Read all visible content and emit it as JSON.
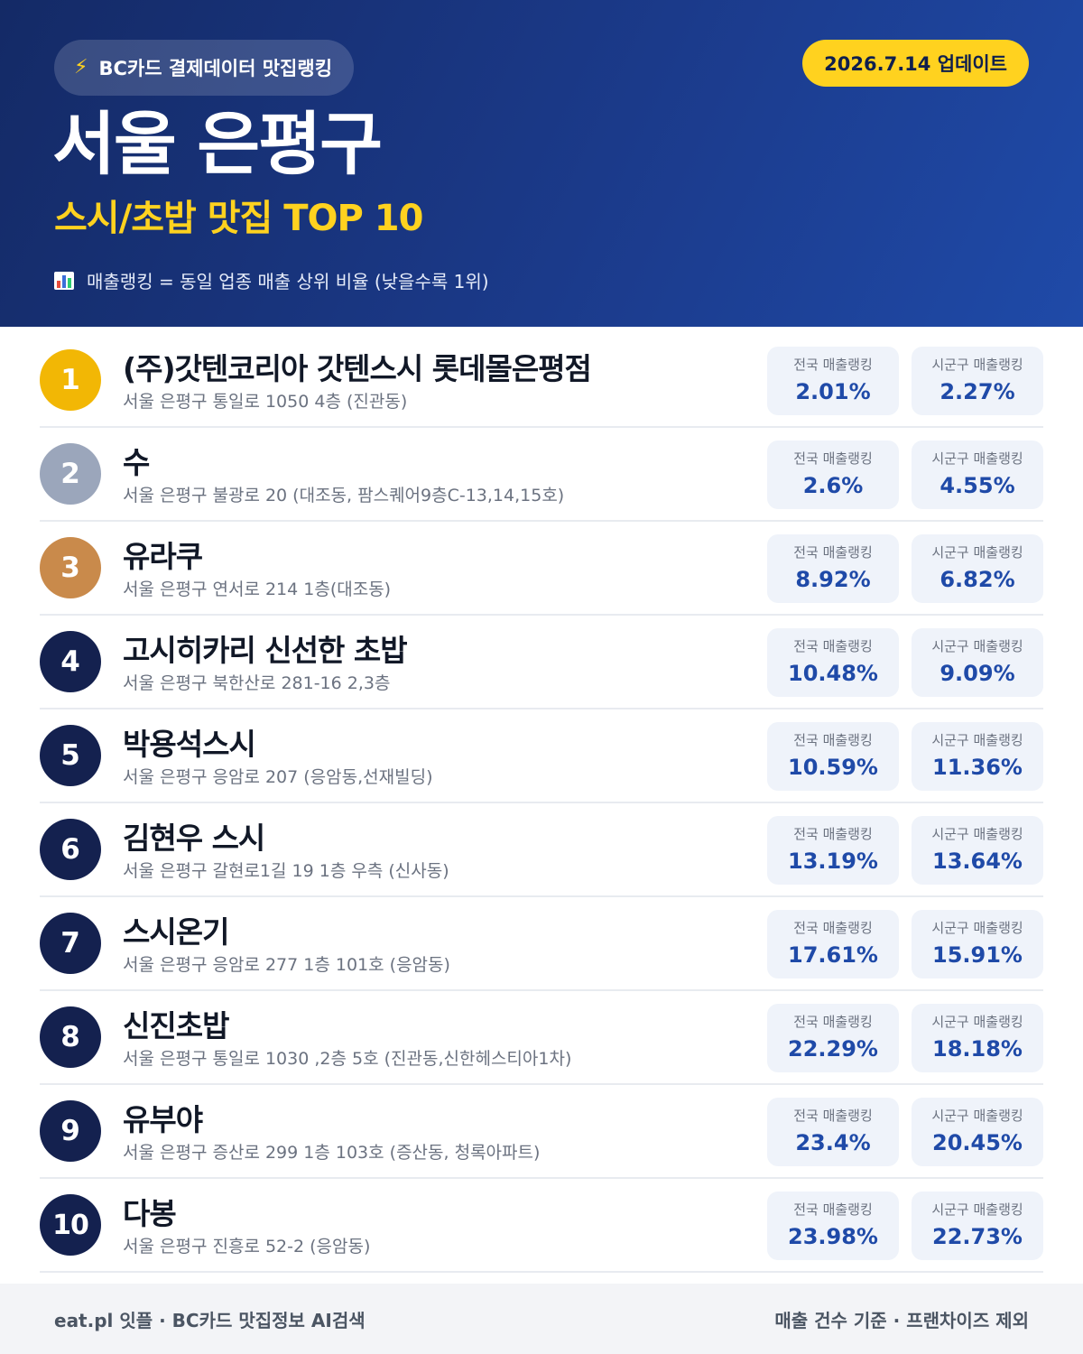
{
  "header": {
    "source_label": "BC카드 결제데이터 맛집랭킹",
    "source_icon": "lightning-bolt-icon",
    "update_label": "2026.7.14 업데이트",
    "title": "서울 은평구",
    "subtitle": "스시/초밥 맛집 TOP 10",
    "legend_icon": "bar-chart-icon",
    "legend_text": "매출랭킹 = 동일 업종 매출 상위 비율 (낮을수록 1위)"
  },
  "colors": {
    "header_start": "#142a66",
    "header_end": "#1f4aa8",
    "accent_yellow": "#ffd21f",
    "gold": "#f2b705",
    "silver": "#9ba6bb",
    "bronze": "#c98a4b",
    "navy": "#14214f",
    "value_blue": "#1f4aa8"
  },
  "stat_labels": {
    "national": "전국 매출랭킹",
    "district": "시군구 매출랭킹"
  },
  "restaurants": [
    {
      "rank": "1",
      "name": "(주)갓텐코리아 갓텐스시 롯데몰은평점",
      "address": "서울 은평구 통일로 1050 4층 (진관동)",
      "national": "2.01%",
      "district": "2.27%"
    },
    {
      "rank": "2",
      "name": "수",
      "address": "서울 은평구 불광로 20 (대조동, 팜스퀘어9층C-13,14,15호)",
      "national": "2.6%",
      "district": "4.55%"
    },
    {
      "rank": "3",
      "name": "유라쿠",
      "address": "서울 은평구 연서로 214 1층(대조동)",
      "national": "8.92%",
      "district": "6.82%"
    },
    {
      "rank": "4",
      "name": "고시히카리 신선한 초밥",
      "address": "서울 은평구 북한산로 281-16 2,3층",
      "national": "10.48%",
      "district": "9.09%"
    },
    {
      "rank": "5",
      "name": "박용석스시",
      "address": "서울 은평구 응암로 207 (응암동,선재빌딩)",
      "national": "10.59%",
      "district": "11.36%"
    },
    {
      "rank": "6",
      "name": "김현우 스시",
      "address": "서울 은평구 갈현로1길 19 1층 우측 (신사동)",
      "national": "13.19%",
      "district": "13.64%"
    },
    {
      "rank": "7",
      "name": "스시온기",
      "address": "서울 은평구 응암로 277 1층 101호 (응암동)",
      "national": "17.61%",
      "district": "15.91%"
    },
    {
      "rank": "8",
      "name": "신진초밥",
      "address": "서울 은평구 통일로 1030 ,2층 5호 (진관동,신한헤스티아1차)",
      "national": "22.29%",
      "district": "18.18%"
    },
    {
      "rank": "9",
      "name": "유부야",
      "address": "서울 은평구 증산로 299 1층 103호 (증산동, 청록아파트)",
      "national": "23.4%",
      "district": "20.45%"
    },
    {
      "rank": "10",
      "name": "다봉",
      "address": "서울 은평구 진흥로 52-2 (응암동)",
      "national": "23.98%",
      "district": "22.73%"
    }
  ],
  "footer": {
    "left": "eat.pl 잇플 · BC카드 맛집정보 AI검색",
    "right": "매출 건수 기준 · 프랜차이즈 제외"
  }
}
